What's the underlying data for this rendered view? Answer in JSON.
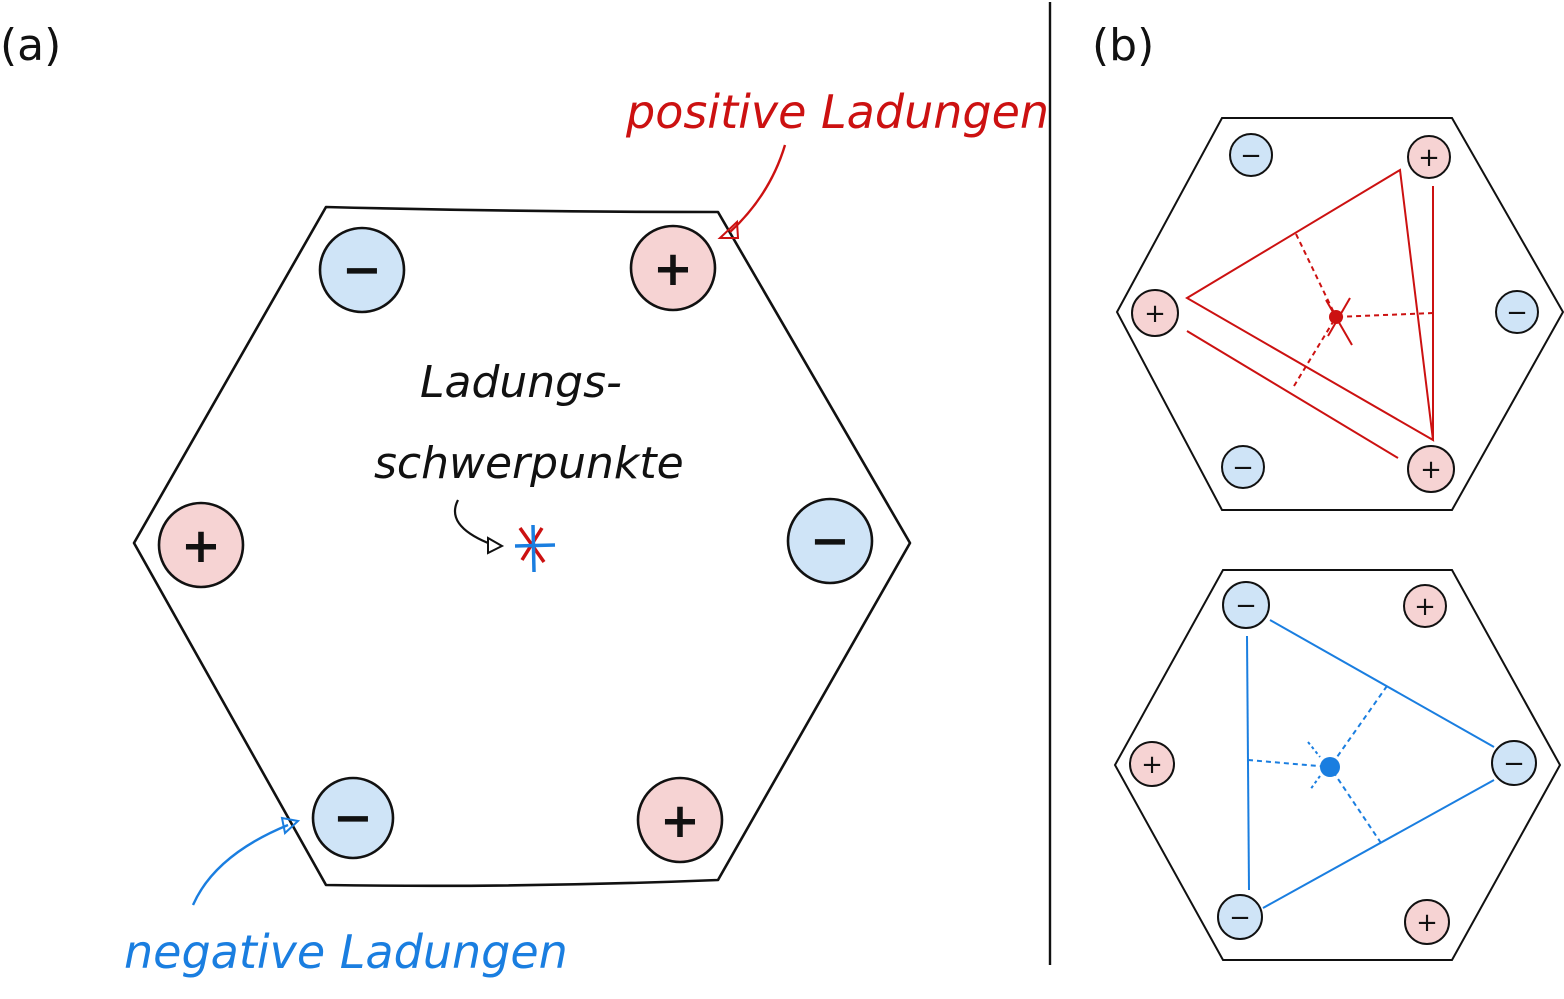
{
  "panel_a": {
    "label": "(a)",
    "positive_label": "positive Ladungen",
    "negative_label": "negative Ladungen",
    "center_label_line1": "Ladungs-",
    "center_label_line2": "schwerpunkte"
  },
  "panel_b": {
    "label": "(b)"
  },
  "charge_symbols": {
    "positive": "+",
    "negative": "−"
  },
  "colors": {
    "positive_fill": "#f6d3d3",
    "negative_fill": "#cfe4f7",
    "positive_line": "#cc1111",
    "negative_line": "#1a7ee0",
    "outline": "#111111"
  }
}
